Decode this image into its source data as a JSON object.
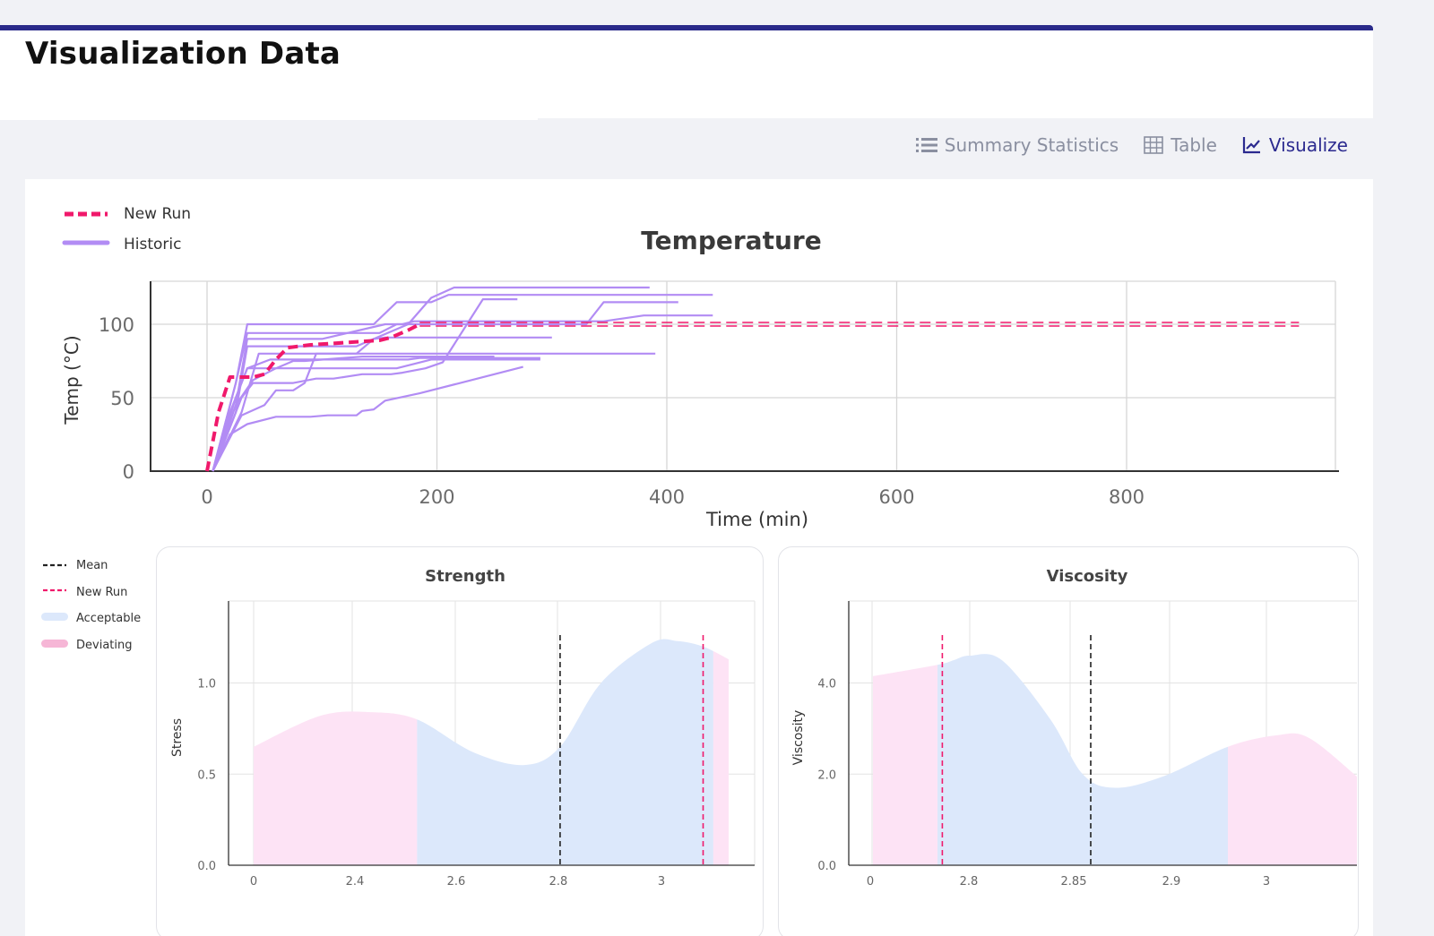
{
  "header": {
    "title": "Visualization Data"
  },
  "tabs": [
    {
      "label": "Summary Statistics",
      "icon": "list-icon",
      "active": false
    },
    {
      "label": "Table",
      "icon": "table-icon",
      "active": false
    },
    {
      "label": "Visualize",
      "icon": "line-chart-icon",
      "active": true
    }
  ],
  "colors": {
    "accent": "#2b2a8f",
    "new_run": "#f0196b",
    "historic": "#b28cf4",
    "acceptable": "#dce8fb",
    "deviating": "#fde3f5",
    "mean": "#222222"
  },
  "chart_data": [
    {
      "type": "line",
      "title": "Temperature",
      "xlabel": "Time (min)",
      "ylabel": "Temp (°C)",
      "xlim": [
        -50,
        1000
      ],
      "ylim": [
        0,
        130
      ],
      "xticks": [
        0,
        200,
        400,
        600,
        800
      ],
      "yticks": [
        0,
        50,
        100
      ],
      "grid": true,
      "legend": {
        "placement": "top-left",
        "entries": [
          "New Run",
          "Historic"
        ]
      },
      "series": [
        {
          "name": "New Run",
          "style": "dashed",
          "x": [
            0,
            10,
            20,
            40,
            50,
            60,
            70,
            90,
            150,
            160,
            175,
            185,
            200,
            950
          ],
          "y": [
            0,
            40,
            64,
            64,
            66,
            76,
            84,
            86,
            89,
            91,
            96,
            100,
            100,
            100
          ]
        },
        {
          "name": "Historic",
          "style": "solid",
          "runs": [
            {
              "x": [
                5,
                20,
                35,
                60,
                75,
                85,
                135,
                150,
                195,
                210,
                250
              ],
              "y": [
                0,
                40,
                70,
                70,
                75,
                75,
                78,
                78,
                78,
                78,
                78
              ]
            },
            {
              "x": [
                5,
                25,
                35,
                55,
                175,
                185,
                290
              ],
              "y": [
                0,
                50,
                70,
                76,
                76,
                77,
                77
              ]
            },
            {
              "x": [
                5,
                25,
                40,
                60,
                165,
                180,
                195,
                290
              ],
              "y": [
                0,
                45,
                62,
                70,
                70,
                73,
                76,
                76
              ]
            },
            {
              "x": [
                5,
                30,
                45,
                60,
                130,
                145,
                155,
                170,
                300
              ],
              "y": [
                0,
                40,
                80,
                80,
                80,
                90,
                91,
                91,
                91
              ]
            },
            {
              "x": [
                5,
                25,
                35,
                95,
                150,
                165,
                185,
                250,
                330,
                345,
                410
              ],
              "y": [
                0,
                60,
                94,
                94,
                94,
                100,
                100,
                100,
                100,
                115,
                115
              ]
            },
            {
              "x": [
                5,
                25,
                35,
                80,
                145,
                165,
                195,
                210,
                330,
                350,
                440
              ],
              "y": [
                0,
                60,
                100,
                100,
                100,
                115,
                115,
                120,
                120,
                120,
                120
              ]
            },
            {
              "x": [
                5,
                25,
                35,
                45,
                130,
                175,
                195,
                215,
                250,
                300,
                340,
                385
              ],
              "y": [
                0,
                40,
                85,
                85,
                85,
                100,
                118,
                125,
                125,
                125,
                125,
                125
              ]
            },
            {
              "x": [
                5,
                30,
                40,
                75,
                95,
                110,
                135,
                160,
                170,
                190,
                205,
                240,
                270
              ],
              "y": [
                0,
                50,
                60,
                60,
                63,
                63,
                66,
                66,
                67,
                70,
                74,
                117,
                117
              ]
            },
            {
              "x": [
                5,
                25,
                35,
                55,
                100,
                155,
                170,
                180,
                245,
                345,
                380,
                440
              ],
              "y": [
                0,
                45,
                90,
                90,
                90,
                100,
                100,
                102,
                102,
                102,
                106,
                106
              ]
            },
            {
              "x": [
                5,
                30,
                50,
                60,
                75,
                85,
                95,
                190,
                240,
                290,
                340,
                390
              ],
              "y": [
                0,
                38,
                45,
                55,
                55,
                60,
                80,
                80,
                80,
                80,
                80,
                80
              ]
            },
            {
              "x": [
                5,
                20,
                35,
                60,
                90,
                105,
                130,
                135,
                145,
                155,
                185,
                275
              ],
              "y": [
                0,
                25,
                32,
                37,
                37,
                38,
                38,
                41,
                42,
                48,
                53,
                71
              ]
            }
          ]
        }
      ]
    },
    {
      "type": "area",
      "title": "Strength",
      "ylabel": "Stress",
      "xticks": [
        0,
        2.4,
        2.6,
        2.8,
        3.0
      ],
      "yticks": [
        0.0,
        0.5,
        1.0
      ],
      "ylim": [
        0,
        1.45
      ],
      "grid": true,
      "legend": {
        "placement": "left",
        "entries": [
          "Mean",
          "New Run",
          "Acceptable",
          "Deviating"
        ]
      },
      "x": [
        2.17,
        2.3,
        2.4,
        2.49,
        2.6,
        2.7,
        2.77,
        2.85,
        2.95,
        3.0,
        3.05,
        3.1
      ],
      "y": [
        0.65,
        0.82,
        0.84,
        0.8,
        0.62,
        0.55,
        0.65,
        1.0,
        1.22,
        1.23,
        1.2,
        1.13
      ],
      "acceptable_range": [
        2.49,
        3.07
      ],
      "mean": 2.77,
      "new_run": 3.05
    },
    {
      "type": "area",
      "title": "Viscosity",
      "ylabel": "Viscosity",
      "xticks": [
        0,
        2.8,
        2.85,
        2.9,
        3.0
      ],
      "yticks": [
        0.0,
        2.0,
        4.0
      ],
      "ylim": [
        0,
        5.8
      ],
      "grid": true,
      "x": [
        2.72,
        2.76,
        2.77,
        2.78,
        2.8,
        2.83,
        2.85,
        2.87,
        2.9,
        2.94,
        2.97,
        2.99,
        3.02
      ],
      "y": [
        4.15,
        4.4,
        4.5,
        4.6,
        4.5,
        3.2,
        2.0,
        1.7,
        1.95,
        2.6,
        2.85,
        2.8,
        1.95
      ],
      "acceptable_range": [
        2.76,
        2.94
      ],
      "mean": 2.855,
      "new_run": 2.763
    }
  ]
}
